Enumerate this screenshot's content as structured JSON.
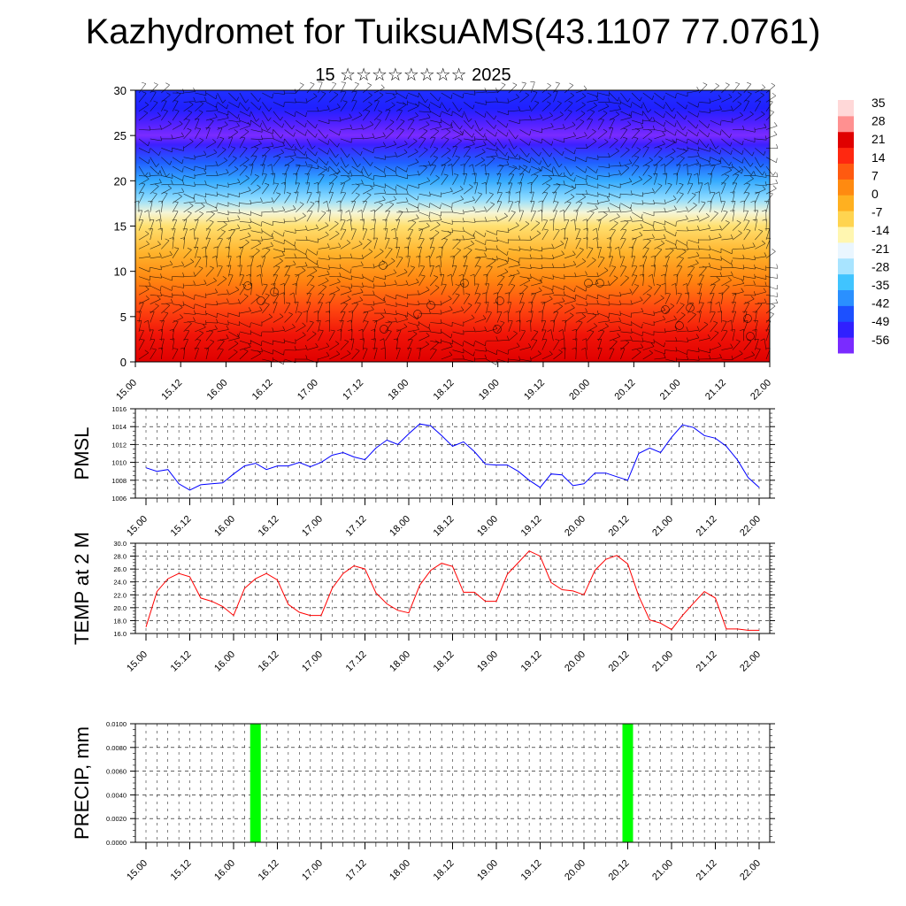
{
  "title": "Kazhydromet for TuiksuAMS(43.1107 77.0761)",
  "subtitle": "15 ☆☆☆☆☆☆☆☆ 2025",
  "chart_data": [
    {
      "type": "heatmap",
      "name": "cross-section",
      "ylim": [
        0,
        30
      ],
      "yticks": [
        "0",
        "5",
        "10",
        "15",
        "20",
        "25",
        "30"
      ],
      "xticks": [
        "15.00",
        "15.12",
        "16.00",
        "16.12",
        "17.00",
        "17.12",
        "18.00",
        "18.12",
        "19.00",
        "19.12",
        "20.00",
        "20.12",
        "21.00",
        "21.12",
        "22.00"
      ],
      "colorbar": {
        "labels": [
          "35",
          "28",
          "21",
          "14",
          "7",
          "0",
          "-7",
          "-14",
          "-21",
          "-28",
          "-35",
          "-42",
          "-49",
          "-56"
        ],
        "colors": [
          "#7a2bff",
          "#3020ff",
          "#1c50ff",
          "#2a90ff",
          "#40c4ff",
          "#a8e4ff",
          "#eaf6ff",
          "#fff6b0",
          "#ffd450",
          "#ffb020",
          "#ff8a10",
          "#ff5a10",
          "#ff2810",
          "#e00000",
          "#ff9090",
          "#ffd8d8"
        ]
      },
      "profile": [
        {
          "h": 0,
          "v": 30
        },
        {
          "h": 3,
          "v": 27
        },
        {
          "h": 6,
          "v": 20
        },
        {
          "h": 9,
          "v": 12
        },
        {
          "h": 12,
          "v": 4
        },
        {
          "h": 15,
          "v": -6
        },
        {
          "h": 16.5,
          "v": -14
        },
        {
          "h": 18,
          "v": -24
        },
        {
          "h": 20,
          "v": -34
        },
        {
          "h": 22,
          "v": -44
        },
        {
          "h": 24,
          "v": -54
        },
        {
          "h": 25,
          "v": -60
        },
        {
          "h": 26.5,
          "v": -55
        },
        {
          "h": 28,
          "v": -52
        },
        {
          "h": 30,
          "v": -50
        }
      ]
    },
    {
      "type": "line",
      "ylabel": "PMSL",
      "ylim": [
        1006,
        1016
      ],
      "yticks": [
        "1006",
        "1008",
        "1010",
        "1012",
        "1014",
        "1016"
      ],
      "xticks": [
        "15.00",
        "15.12",
        "16.00",
        "16.12",
        "17.00",
        "17.12",
        "18.00",
        "18.12",
        "19.00",
        "19.12",
        "20.00",
        "20.12",
        "21.00",
        "21.12",
        "22.00"
      ],
      "color": "#0000ff",
      "values": [
        1009.4,
        1009.0,
        1009.2,
        1007.6,
        1006.9,
        1007.5,
        1007.6,
        1007.7,
        1008.7,
        1009.6,
        1009.9,
        1009.2,
        1009.6,
        1009.6,
        1010.0,
        1009.5,
        1010.0,
        1010.8,
        1011.1,
        1010.6,
        1010.3,
        1011.6,
        1012.5,
        1012.0,
        1013.2,
        1014.3,
        1014.1,
        1013.0,
        1011.8,
        1012.3,
        1011.2,
        1009.8,
        1009.7,
        1009.7,
        1009.0,
        1008.0,
        1007.2,
        1008.7,
        1008.6,
        1007.4,
        1007.6,
        1008.8,
        1008.8,
        1008.4,
        1008.0,
        1011.0,
        1011.6,
        1011.1,
        1012.8,
        1014.2,
        1013.9,
        1013.0,
        1012.7,
        1011.8,
        1010.3,
        1008.3,
        1007.2
      ]
    },
    {
      "type": "line",
      "ylabel": "TEMP at 2 M",
      "ylim": [
        16,
        30
      ],
      "yticks": [
        "16.0",
        "18.0",
        "20.0",
        "22.0",
        "24.0",
        "26.0",
        "28.0",
        "30.0"
      ],
      "xticks": [
        "15.00",
        "15.12",
        "16.00",
        "16.12",
        "17.00",
        "17.12",
        "18.00",
        "18.12",
        "19.00",
        "19.12",
        "20.00",
        "20.12",
        "21.00",
        "21.12",
        "22.00"
      ],
      "color": "#ff0000",
      "values": [
        17.0,
        22.5,
        24.5,
        25.3,
        24.8,
        21.5,
        21.0,
        20.2,
        18.8,
        23.0,
        24.5,
        25.3,
        24.3,
        20.5,
        19.3,
        18.8,
        18.8,
        23.0,
        25.3,
        26.5,
        26.0,
        22.3,
        20.6,
        19.6,
        19.2,
        23.5,
        25.8,
        26.9,
        26.4,
        22.4,
        22.4,
        21.0,
        21.0,
        25.2,
        27.0,
        28.8,
        28.0,
        23.9,
        22.8,
        22.6,
        22.0,
        25.8,
        27.5,
        28.1,
        26.8,
        21.8,
        18.1,
        17.6,
        16.6,
        18.8,
        20.7,
        22.5,
        21.5,
        16.7,
        16.7,
        16.5,
        16.5
      ]
    },
    {
      "type": "bar",
      "ylabel": "PRECIP, mm",
      "ylim": [
        0,
        0.01
      ],
      "yticks": [
        "0.0000",
        "0.0020",
        "0.0040",
        "0.0060",
        "0.0080",
        "0.0100"
      ],
      "xticks": [
        "15.00",
        "15.12",
        "16.00",
        "16.12",
        "17.00",
        "17.12",
        "18.00",
        "18.12",
        "19.00",
        "19.12",
        "20.00",
        "20.12",
        "21.00",
        "21.12",
        "22.00"
      ],
      "color": "#00ff00",
      "bars": [
        {
          "x": "16.06",
          "value": 0.01
        },
        {
          "x": "20.12",
          "value": 0.01
        }
      ]
    }
  ]
}
